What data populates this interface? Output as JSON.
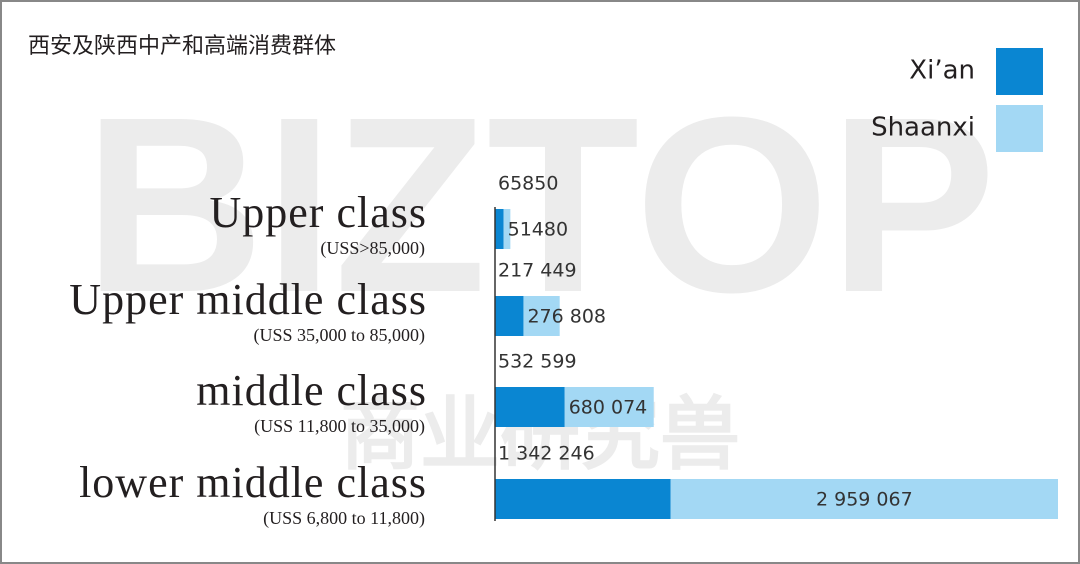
{
  "chart_data": {
    "type": "stacked-bar-horizontal",
    "title": "西安及陕西中产和高端消费群体",
    "watermark": [
      "BIZTOP",
      "商业研究兽"
    ],
    "categories": [
      "Upper  class",
      "Upper middle class",
      "middle class",
      "lower middle class"
    ],
    "category_notes": [
      "(USS>85,000)",
      "(USS 35,000 to 85,000)",
      "(USS 11,800 to 35,000)",
      "(USS 6,800 to 11,800)"
    ],
    "series": [
      {
        "name": "Xi’an",
        "color": "#0a86d2",
        "values": [
          65850,
          217449,
          532599,
          1342246
        ],
        "value_labels": [
          "65850",
          "217 449",
          "532 599",
          "1 342 246"
        ]
      },
      {
        "name": "Shaanxi",
        "color": "#a3d8f4",
        "values": [
          51480,
          276808,
          680074,
          2959067
        ],
        "value_labels": [
          "51480",
          "276 808",
          "680 074",
          "2 959 067"
        ]
      }
    ],
    "legend": "top-right"
  }
}
